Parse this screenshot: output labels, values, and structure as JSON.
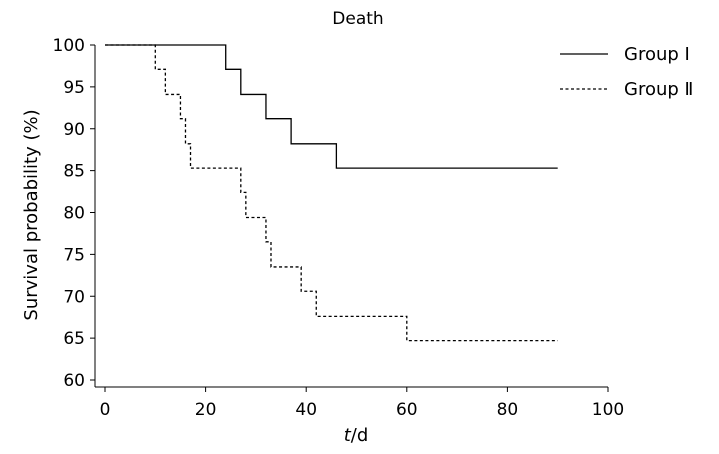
{
  "chart_data": {
    "type": "line",
    "title": "Death",
    "xlabel_italic": "t",
    "xlabel_rest": "/d",
    "ylabel": "Survival probability (%)",
    "xlim": [
      0,
      100
    ],
    "ylim": [
      60,
      100
    ],
    "xticks": [
      0,
      20,
      40,
      60,
      80,
      100
    ],
    "yticks": [
      60,
      65,
      70,
      75,
      80,
      85,
      90,
      95,
      100
    ],
    "grid": false,
    "legend_position": "top-right",
    "series": [
      {
        "name": "Group Ⅰ",
        "style": "solid",
        "x": [
          0,
          24,
          27,
          32,
          37,
          46,
          90
        ],
        "y": [
          100,
          97.1,
          94.1,
          91.2,
          88.2,
          85.3,
          85.3
        ]
      },
      {
        "name": "Group Ⅱ",
        "style": "dashed",
        "x": [
          0,
          10,
          11,
          12,
          15,
          16,
          17,
          27,
          28,
          32,
          33,
          39,
          40,
          42,
          60,
          90
        ],
        "y": [
          100,
          97.1,
          97.1,
          94.1,
          91.2,
          88.2,
          85.3,
          82.4,
          79.4,
          76.5,
          73.5,
          70.6,
          70.6,
          67.6,
          64.7,
          64.7
        ]
      }
    ]
  }
}
